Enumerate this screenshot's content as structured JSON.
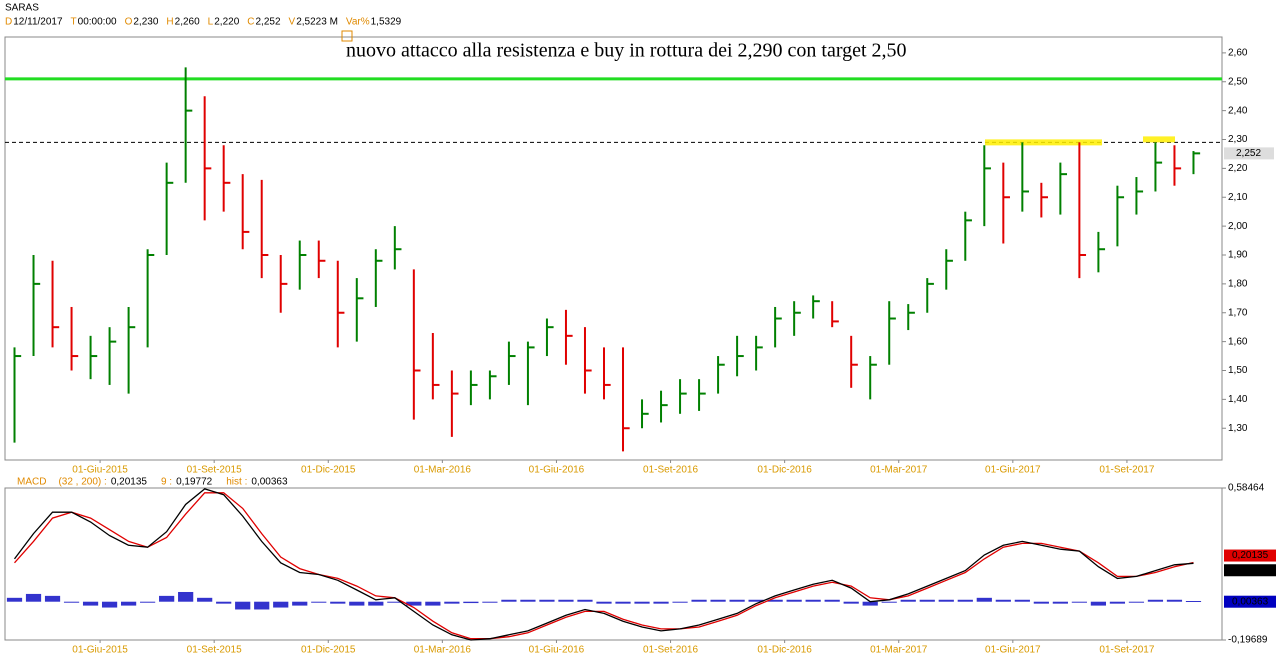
{
  "chart_data": [
    {
      "type": "ohlc",
      "title": "SARAS",
      "header": [
        {
          "key": "D",
          "value": "12/11/2017"
        },
        {
          "key": "T",
          "value": "00:00:00"
        },
        {
          "key": "O",
          "value": "2,230"
        },
        {
          "key": "H",
          "value": "2,260"
        },
        {
          "key": "L",
          "value": "2,220"
        },
        {
          "key": "C",
          "value": "2,252"
        },
        {
          "key": "V",
          "value": "2,5223 M"
        },
        {
          "key": "Var%",
          "value": "1,5329"
        }
      ],
      "annotation": "nuovo attacco alla resistenza e buy in rottura dei 2,290 con target 2,50",
      "categories": [
        null,
        null,
        null,
        null,
        null,
        "01-Giu-2015",
        null,
        null,
        null,
        null,
        null,
        "01-Set-2015",
        null,
        null,
        null,
        null,
        null,
        "01-Dic-2015",
        null,
        null,
        null,
        null,
        null,
        "01-Mar-2016",
        null,
        null,
        null,
        null,
        null,
        "01-Giu-2016",
        null,
        null,
        null,
        null,
        null,
        "01-Set-2016",
        null,
        null,
        null,
        null,
        null,
        "01-Dic-2016",
        null,
        null,
        null,
        null,
        null,
        "01-Mar-2017",
        null,
        null,
        null,
        null,
        null,
        "01-Giu-2017",
        null,
        null,
        null,
        null,
        null,
        "01-Set-2017",
        null,
        null,
        null
      ],
      "high": [
        1.58,
        1.9,
        1.88,
        1.72,
        1.62,
        1.65,
        1.72,
        1.92,
        2.22,
        2.55,
        2.45,
        2.28,
        2.18,
        2.16,
        1.9,
        1.95,
        1.95,
        1.88,
        1.82,
        1.92,
        2.0,
        1.85,
        1.63,
        1.5,
        1.5,
        1.5,
        1.6,
        1.6,
        1.68,
        1.71,
        1.65,
        1.58,
        1.58,
        1.4,
        1.43,
        1.47,
        1.47,
        1.55,
        1.62,
        1.62,
        1.72,
        1.74,
        1.76,
        1.74,
        1.62,
        1.55,
        1.74,
        1.73,
        1.82,
        1.92,
        2.05,
        2.28,
        2.22,
        2.29,
        2.15,
        2.22,
        2.29,
        1.98,
        2.14,
        2.17,
        2.29,
        2.28,
        2.26
      ],
      "low": [
        1.25,
        1.55,
        1.58,
        1.5,
        1.47,
        1.45,
        1.42,
        1.58,
        1.9,
        2.15,
        2.02,
        2.05,
        1.92,
        1.82,
        1.7,
        1.78,
        1.82,
        1.58,
        1.6,
        1.72,
        1.85,
        1.33,
        1.4,
        1.27,
        1.38,
        1.4,
        1.45,
        1.38,
        1.55,
        1.52,
        1.42,
        1.4,
        1.22,
        1.3,
        1.32,
        1.35,
        1.36,
        1.42,
        1.48,
        1.5,
        1.58,
        1.62,
        1.68,
        1.65,
        1.44,
        1.4,
        1.52,
        1.64,
        1.7,
        1.78,
        1.88,
        2.0,
        1.94,
        2.05,
        2.03,
        2.04,
        1.82,
        1.84,
        1.93,
        2.04,
        2.12,
        2.14,
        2.18
      ],
      "close": [
        1.55,
        1.8,
        1.65,
        1.55,
        1.55,
        1.6,
        1.65,
        1.9,
        2.15,
        2.4,
        2.2,
        2.15,
        1.98,
        1.9,
        1.8,
        1.9,
        1.88,
        1.7,
        1.75,
        1.88,
        1.92,
        1.5,
        1.45,
        1.42,
        1.45,
        1.48,
        1.55,
        1.58,
        1.65,
        1.62,
        1.5,
        1.45,
        1.3,
        1.35,
        1.38,
        1.42,
        1.42,
        1.52,
        1.55,
        1.58,
        1.68,
        1.7,
        1.74,
        1.67,
        1.52,
        1.52,
        1.68,
        1.7,
        1.8,
        1.88,
        2.02,
        2.2,
        2.1,
        2.12,
        2.1,
        2.18,
        1.9,
        1.92,
        2.1,
        2.12,
        2.22,
        2.2,
        2.252
      ],
      "up_color": "#008000",
      "down_color": "#e00000",
      "ylim": [
        1.19,
        2.655
      ],
      "yticks": [
        {
          "value": 1.3,
          "label": "1,30"
        },
        {
          "value": 1.4,
          "label": "1,40"
        },
        {
          "value": 1.5,
          "label": "1,50"
        },
        {
          "value": 1.6,
          "label": "1,60"
        },
        {
          "value": 1.7,
          "label": "1,70"
        },
        {
          "value": 1.8,
          "label": "1,80"
        },
        {
          "value": 1.9,
          "label": "1,90"
        },
        {
          "value": 2.0,
          "label": "2,00"
        },
        {
          "value": 2.1,
          "label": "2,10"
        },
        {
          "value": 2.2,
          "label": "2,20"
        },
        {
          "value": 2.3,
          "label": "2,30"
        },
        {
          "value": 2.4,
          "label": "2,40"
        },
        {
          "value": 2.5,
          "label": "2,50"
        },
        {
          "value": 2.6,
          "label": "2,60"
        }
      ],
      "hlines": [
        {
          "value": 2.51,
          "color": "#22dd22",
          "style": "solid"
        },
        {
          "value": 2.29,
          "color": "#000000",
          "style": "dashed"
        }
      ],
      "last_label": {
        "value": 2.252,
        "label": "2,252"
      }
    },
    {
      "type": "macd",
      "title": "MACD",
      "categories": [
        null,
        null,
        null,
        null,
        null,
        "01-Giu-2015",
        null,
        null,
        null,
        null,
        null,
        "01-Set-2015",
        null,
        null,
        null,
        null,
        null,
        "01-Dic-2015",
        null,
        null,
        null,
        null,
        null,
        "01-Mar-2016",
        null,
        null,
        null,
        null,
        null,
        "01-Giu-2016",
        null,
        null,
        null,
        null,
        null,
        "01-Set-2016",
        null,
        null,
        null,
        null,
        null,
        "01-Dic-2016",
        null,
        null,
        null,
        null,
        null,
        "01-Mar-2017",
        null,
        null,
        null,
        null,
        null,
        "01-Giu-2017",
        null,
        null,
        null,
        null,
        null,
        "01-Set-2017",
        null,
        null,
        null
      ],
      "series": [
        {
          "name": "(32 , 200) :",
          "color": "#e00000",
          "last_label": "0,20135",
          "values": [
            0.2,
            0.31,
            0.43,
            0.46,
            0.43,
            0.37,
            0.31,
            0.28,
            0.33,
            0.45,
            0.56,
            0.56,
            0.48,
            0.35,
            0.23,
            0.17,
            0.14,
            0.12,
            0.08,
            0.03,
            0.02,
            -0.03,
            -0.1,
            -0.16,
            -0.19,
            -0.19,
            -0.18,
            -0.16,
            -0.12,
            -0.08,
            -0.05,
            -0.05,
            -0.09,
            -0.12,
            -0.14,
            -0.14,
            -0.13,
            -0.1,
            -0.07,
            -0.02,
            0.02,
            0.05,
            0.08,
            0.1,
            0.08,
            0.02,
            0.01,
            0.03,
            0.07,
            0.11,
            0.15,
            0.22,
            0.28,
            0.3,
            0.3,
            0.28,
            0.26,
            0.2,
            0.13,
            0.13,
            0.15,
            0.18,
            0.20135
          ]
        },
        {
          "name": "9 :",
          "color": "#000000",
          "last_label": "0,19772",
          "values": [
            0.22,
            0.35,
            0.46,
            0.46,
            0.41,
            0.34,
            0.29,
            0.28,
            0.36,
            0.5,
            0.58,
            0.55,
            0.44,
            0.31,
            0.2,
            0.15,
            0.14,
            0.11,
            0.06,
            0.01,
            0.02,
            -0.05,
            -0.12,
            -0.17,
            -0.197,
            -0.19,
            -0.17,
            -0.15,
            -0.11,
            -0.07,
            -0.04,
            -0.06,
            -0.1,
            -0.13,
            -0.15,
            -0.14,
            -0.12,
            -0.09,
            -0.06,
            -0.01,
            0.03,
            0.06,
            0.09,
            0.11,
            0.07,
            0.0,
            0.01,
            0.04,
            0.08,
            0.12,
            0.16,
            0.24,
            0.29,
            0.31,
            0.29,
            0.27,
            0.26,
            0.18,
            0.12,
            0.13,
            0.16,
            0.19,
            0.19772
          ]
        },
        {
          "name": "hist :",
          "color": "#0000c0",
          "last_label": "0,00363",
          "bars": true,
          "values": [
            0.02,
            0.04,
            0.03,
            0.0,
            -0.02,
            -0.03,
            -0.02,
            0.0,
            0.03,
            0.05,
            0.02,
            -0.01,
            -0.04,
            -0.04,
            -0.03,
            -0.02,
            0.0,
            -0.01,
            -0.02,
            -0.02,
            0.0,
            -0.02,
            -0.02,
            -0.01,
            -0.007,
            0.0,
            0.01,
            0.01,
            0.01,
            0.01,
            0.01,
            -0.01,
            -0.01,
            -0.01,
            -0.01,
            0.0,
            0.01,
            0.01,
            0.01,
            0.01,
            0.01,
            0.01,
            0.01,
            0.01,
            -0.01,
            -0.02,
            0.0,
            0.01,
            0.01,
            0.01,
            0.01,
            0.02,
            0.01,
            0.01,
            -0.01,
            -0.01,
            0.0,
            -0.02,
            -0.01,
            0.0,
            0.01,
            0.01,
            0.00363
          ]
        }
      ],
      "ylim": [
        -0.19689,
        0.58464
      ],
      "yticks": [
        {
          "value": 0.58464,
          "label": "0,58464"
        },
        {
          "value": -0.19689,
          "label": "-0,19689"
        }
      ]
    }
  ]
}
